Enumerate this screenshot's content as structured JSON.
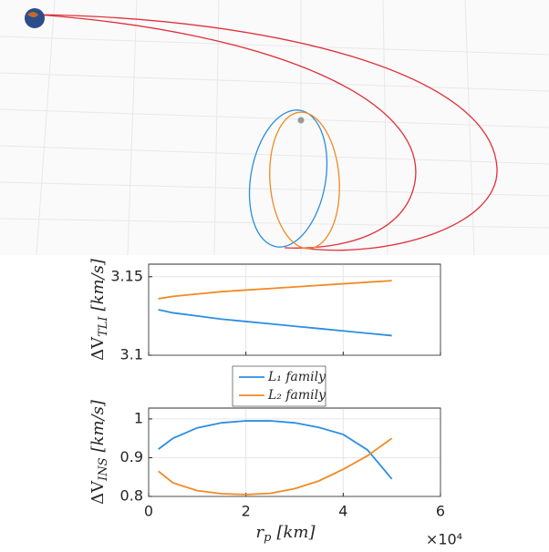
{
  "chart_data": [
    {
      "type": "line",
      "ylabel": [
        "ΔV",
        "TLI",
        "[km/s]"
      ],
      "x": [
        2000,
        5000,
        10000,
        15000,
        20000,
        25000,
        30000,
        35000,
        40000,
        45000,
        50000
      ],
      "series": [
        {
          "color": "#2c8ee0",
          "values": [
            3.129,
            3.127,
            3.125,
            3.123,
            3.1215,
            3.12,
            3.1185,
            3.117,
            3.1155,
            3.114,
            3.1125
          ]
        },
        {
          "color": "#f08a24",
          "values": [
            3.136,
            3.1375,
            3.139,
            3.1405,
            3.1415,
            3.1425,
            3.1435,
            3.1445,
            3.1455,
            3.1465,
            3.1475
          ]
        }
      ],
      "xlim": [
        0,
        60000
      ],
      "xticks": [
        0,
        20000,
        40000,
        60000
      ],
      "ylim": [
        3.1,
        3.158
      ],
      "yticks": [
        3.1,
        3.15
      ],
      "grid": true
    },
    {
      "type": "line",
      "ylabel": [
        "ΔV",
        "INS",
        "[km/s]"
      ],
      "xlabel": [
        "r",
        "p",
        "[km]"
      ],
      "x_multiplier": "×10⁴",
      "x": [
        2000,
        5000,
        10000,
        15000,
        20000,
        25000,
        30000,
        35000,
        40000,
        45000,
        50000
      ],
      "series": [
        {
          "name": "L₁ family",
          "color": "#2c8ee0",
          "values": [
            0.922,
            0.95,
            0.977,
            0.99,
            0.995,
            0.995,
            0.99,
            0.978,
            0.96,
            0.92,
            0.845
          ]
        },
        {
          "name": "L₂ family",
          "color": "#f08a24",
          "values": [
            0.865,
            0.835,
            0.815,
            0.807,
            0.805,
            0.808,
            0.82,
            0.84,
            0.87,
            0.905,
            0.95
          ]
        }
      ],
      "xlim": [
        0,
        60000
      ],
      "xticks": [
        {
          "value": 0,
          "label": "0"
        },
        {
          "value": 20000,
          "label": "2"
        },
        {
          "value": 40000,
          "label": "4"
        },
        {
          "value": 60000,
          "label": "6"
        }
      ],
      "ylim": [
        0.8,
        1.028
      ],
      "yticks": [
        0.8,
        0.9,
        1
      ],
      "grid": true,
      "legend": "top"
    }
  ]
}
